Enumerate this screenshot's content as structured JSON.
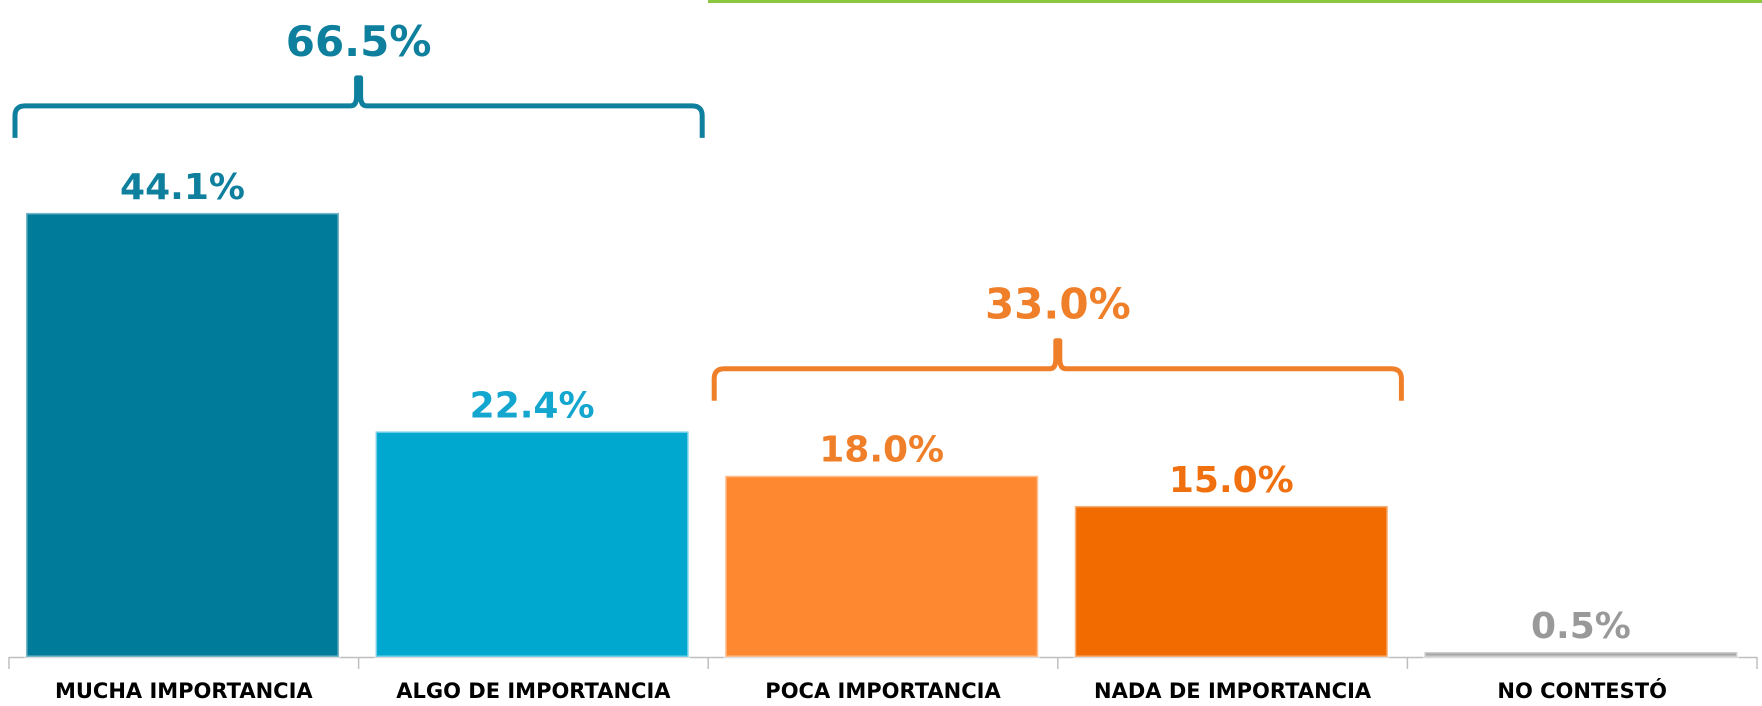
{
  "chart_data": {
    "type": "bar",
    "categories": [
      "MUCHA IMPORTANCIA",
      "ALGO DE IMPORTANCIA",
      "POCA IMPORTANCIA",
      "NADA DE IMPORTANCIA",
      "NO CONTESTÓ"
    ],
    "values": [
      44.1,
      22.4,
      18.0,
      15.0,
      0.5
    ],
    "value_labels": [
      "44.1%",
      "22.4%",
      "18.0%",
      "15.0%",
      "0.5%"
    ],
    "colors": [
      "#007b99",
      "#00a8d0",
      "#fd8830",
      "#f26b00",
      "#a6a6a6"
    ],
    "label_colors": [
      "#0e7f9c",
      "#13a6cf",
      "#f07f2a",
      "#f0700f",
      "#999999"
    ],
    "groups": [
      {
        "value": 66.5,
        "label": "66.5%",
        "categories": [
          "MUCHA IMPORTANCIA",
          "ALGO DE IMPORTANCIA"
        ],
        "color": "#0e7f9c"
      },
      {
        "value": 33.0,
        "label": "33.0%",
        "categories": [
          "POCA IMPORTANCIA",
          "NADA DE IMPORTANCIA"
        ],
        "color": "#f07f2a"
      }
    ]
  }
}
